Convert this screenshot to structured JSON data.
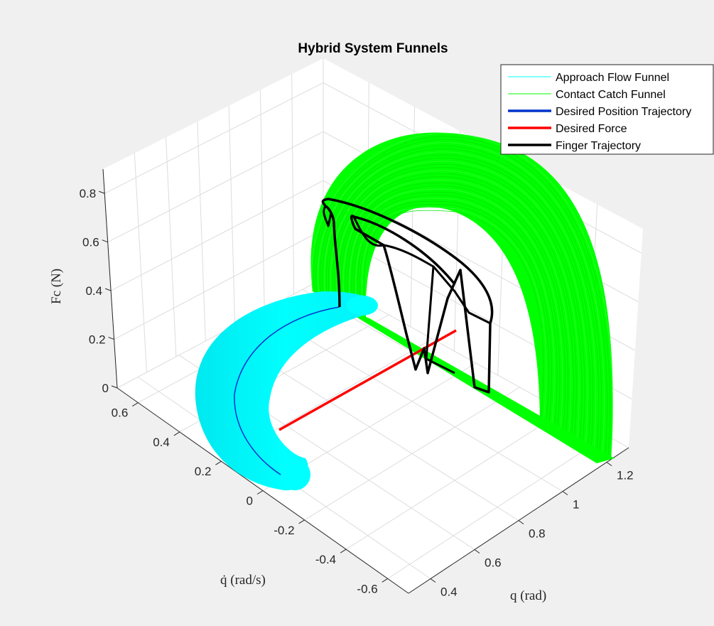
{
  "chart_data": {
    "type": "3d-line",
    "title": "Hybrid System Funnels",
    "xlabel": "q (rad)",
    "ylabel": "q̇ (rad/s)",
    "zlabel": "Fc (N)",
    "xlim": [
      0.3,
      1.3
    ],
    "ylim": [
      -0.7,
      0.7
    ],
    "zlim": [
      0,
      0.9
    ],
    "x_ticks": [
      "0.4",
      "0.6",
      "0.8",
      "1",
      "1.2"
    ],
    "y_ticks": [
      "-0.6",
      "-0.4",
      "-0.2",
      "0",
      "0.2",
      "0.4",
      "0.6"
    ],
    "z_ticks": [
      "0",
      "0.2",
      "0.4",
      "0.6",
      "0.8"
    ],
    "grid": true,
    "legend_position": "top-right",
    "series": [
      {
        "name": "Approach Flow Funnel",
        "color": "#00ffff",
        "line_width": 1
      },
      {
        "name": "Contact Catch Funnel",
        "color": "#00ff00",
        "line_width": 1
      },
      {
        "name": "Desired Position Trajectory",
        "color": "#0033cc",
        "line_width": 3
      },
      {
        "name": "Desired Force",
        "color": "#ff0000",
        "line_width": 3
      },
      {
        "name": "Finger Trajectory",
        "color": "#000000",
        "line_width": 3
      }
    ]
  }
}
